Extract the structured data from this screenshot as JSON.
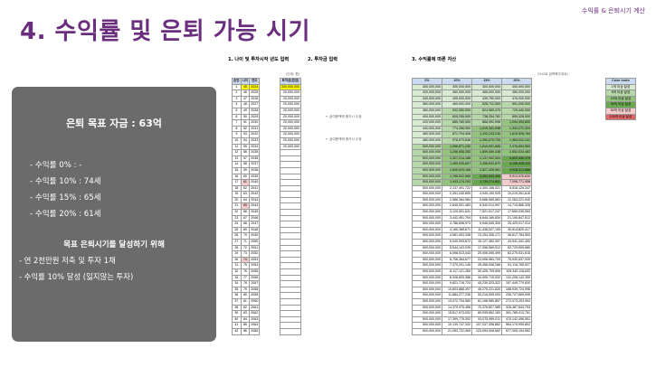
{
  "title": "4. 수익률 및 은퇴 가능 시기",
  "top_label": "수익률 & 은퇴시기 계산",
  "sections": {
    "s1": "1. 나이 및 투자시작 년도 입력",
    "s2": "2. 투자금 입력",
    "s3": "3. 수익률에 따른 자산"
  },
  "panel": {
    "goal": "은퇴 목표 자금 : 63억",
    "items": [
      "- 수익률    0% : -",
      "- 수익률 10% : 74세",
      "- 수익률 15% : 65세",
      "- 수익률 20% : 61세"
    ],
    "heading": "목표 은퇴시기를 달성하기 위해",
    "actions": [
      "- 연 2천만원 저축 및 투자 1채",
      "- 수익률 10% 달성 (잃지않는 투자)"
    ]
  },
  "table1": {
    "headers": [
      "순번",
      "나이",
      "연도"
    ],
    "rows": [
      [
        "1",
        "45",
        "2024"
      ],
      [
        "2",
        "46",
        "2025"
      ],
      [
        "3",
        "47",
        "2026"
      ],
      [
        "4",
        "48",
        "2027"
      ],
      [
        "5",
        "49",
        "2028"
      ],
      [
        "6",
        "50",
        "2029"
      ],
      [
        "7",
        "51",
        "2030"
      ],
      [
        "8",
        "52",
        "2031"
      ],
      [
        "9",
        "53",
        "2032"
      ],
      [
        "10",
        "54",
        "2033"
      ],
      [
        "11",
        "55",
        "2034"
      ],
      [
        "12",
        "56",
        "2035"
      ],
      [
        "13",
        "57",
        "2036"
      ],
      [
        "14",
        "58",
        "2037"
      ],
      [
        "15",
        "59",
        "2038"
      ],
      [
        "16",
        "60",
        "2039"
      ],
      [
        "17",
        "61",
        "2040"
      ],
      [
        "18",
        "62",
        "2041"
      ],
      [
        "19",
        "63",
        "2042"
      ],
      [
        "20",
        "64",
        "2043"
      ],
      [
        "21",
        "65",
        "2044"
      ],
      [
        "22",
        "66",
        "2045"
      ],
      [
        "23",
        "67",
        "2046"
      ],
      [
        "24",
        "68",
        "2047"
      ],
      [
        "25",
        "69",
        "2048"
      ],
      [
        "26",
        "70",
        "2049"
      ],
      [
        "27",
        "71",
        "2050"
      ],
      [
        "28",
        "72",
        "2051"
      ],
      [
        "29",
        "73",
        "2052"
      ],
      [
        "30",
        "74",
        "2053"
      ],
      [
        "31",
        "75",
        "2054"
      ],
      [
        "32",
        "76",
        "2055"
      ],
      [
        "33",
        "77",
        "2056"
      ],
      [
        "34",
        "78",
        "2057"
      ],
      [
        "35",
        "79",
        "2058"
      ],
      [
        "36",
        "80",
        "2059"
      ],
      [
        "37",
        "81",
        "2060"
      ],
      [
        "38",
        "82",
        "2061"
      ],
      [
        "39",
        "83",
        "2062"
      ],
      [
        "40",
        "84",
        "2063"
      ],
      [
        "41",
        "85",
        "2064"
      ],
      [
        "42",
        "86",
        "2065"
      ]
    ]
  },
  "table2": {
    "unit": "(단위: 원)",
    "header": "투자금(원금)",
    "values": [
      "300,000,000",
      "20,000,000",
      "20,000,000",
      "20,000,000",
      "20,000,000",
      "20,000,000",
      "20,000,000",
      "20,000,000",
      "20,000,000",
      "20,000,000",
      "20,000,000"
    ],
    "note": "← 급여증액에 증가시 수정"
  },
  "table3": {
    "unit": "(%으로 입력해주세요)",
    "headers": [
      "0%",
      "10%",
      "15%",
      "20%"
    ],
    "rows": [
      [
        "300,000,000",
        "300,000,000",
        "300,000,000",
        "300,000,000"
      ],
      [
        "320,000,000",
        "350,000,000",
        "365,000,000",
        "380,000,000"
      ],
      [
        "340,000,000",
        "405,000,000",
        "439,750,000",
        "476,000,000"
      ],
      [
        "360,000,000",
        "465,500,000",
        "525,712,500",
        "591,200,000"
      ],
      [
        "380,000,000",
        "532,050,000",
        "624,569,375",
        "729,440,000"
      ],
      [
        "400,000,000",
        "605,255,000",
        "738,254,781",
        "895,328,000"
      ],
      [
        "420,000,000",
        "685,780,500",
        "868,992,998",
        "1,094,393,600"
      ],
      [
        "440,000,000",
        "774,358,550",
        "1,019,341,948",
        "1,333,272,320"
      ],
      [
        "460,000,000",
        "871,794,405",
        "1,192,243,240",
        "1,619,926,784"
      ],
      [
        "480,000,000",
        "978,973,846",
        "1,390,079,726",
        "1,963,912,141"
      ],
      [
        "500,000,000",
        "1,096,871,230",
        "1,616,591,685",
        "2,376,694,569"
      ],
      [
        "500,000,000",
        "1,206,558,353",
        "1,859,080,438",
        "2,852,033,483"
      ],
      [
        "500,000,000",
        "1,327,214,188",
        "2,137,942,504",
        "3,422,440,179"
      ],
      [
        "500,000,000",
        "1,459,935,607",
        "2,458,633,879",
        "4,106,928,215"
      ],
      [
        "500,000,000",
        "1,605,929,168",
        "2,827,428,961",
        "4,928,313,858"
      ],
      [
        "500,000,000",
        "1,766,522,085",
        "3,251,543,305",
        "5,913,976,630"
      ],
      [
        "500,000,000",
        "1,943,174,293",
        "3,739,274,801",
        "7,096,771,956"
      ],
      [
        "500,000,000",
        "2,137,491,722",
        "4,300,166,021",
        "8,516,126,347"
      ],
      [
        "500,000,000",
        "2,351,240,895",
        "4,945,190,925",
        "10,219,351,616"
      ],
      [
        "500,000,000",
        "2,586,364,984",
        "5,686,969,563",
        "12,263,221,940"
      ],
      [
        "500,000,000",
        "2,845,001,483",
        "6,540,014,997",
        "14,715,866,328"
      ],
      [
        "500,000,000",
        "3,129,501,631",
        "7,521,017,247",
        "17,659,039,593"
      ],
      [
        "500,000,000",
        "3,442,451,794",
        "8,649,169,834",
        "21,190,847,512"
      ],
      [
        "500,000,000",
        "3,786,696,973",
        "9,946,545,309",
        "25,429,017,014"
      ],
      [
        "500,000,000",
        "4,165,366,671",
        "11,438,527,105",
        "30,514,820,417"
      ],
      [
        "500,000,000",
        "4,581,903,338",
        "13,154,306,171",
        "36,617,784,500"
      ],
      [
        "500,000,000",
        "5,040,093,672",
        "15,127,452,097",
        "43,941,341,400"
      ],
      [
        "500,000,000",
        "5,544,103,039",
        "17,396,569,912",
        "52,729,609,680"
      ],
      [
        "500,000,000",
        "6,098,513,343",
        "20,006,055,399",
        "63,275,531,616"
      ],
      [
        "500,000,000",
        "6,708,364,677",
        "23,006,963,709",
        "75,930,637,939"
      ],
      [
        "500,000,000",
        "7,379,201,145",
        "26,458,008,266",
        "91,116,765,527"
      ],
      [
        "500,000,000",
        "8,117,121,260",
        "30,426,709,506",
        "109,340,118,632"
      ],
      [
        "500,000,000",
        "8,928,833,386",
        "34,990,715,932",
        "131,208,142,359"
      ],
      [
        "500,000,000",
        "9,821,716,724",
        "40,239,323,322",
        "157,449,770,830"
      ],
      [
        "500,000,000",
        "10,803,888,397",
        "46,275,221,820",
        "188,939,724,996"
      ],
      [
        "500,000,000",
        "11,884,277,236",
        "53,216,505,093",
        "226,727,669,995"
      ],
      [
        "500,000,000",
        "13,072,704,960",
        "61,198,980,857",
        "272,073,203,994"
      ],
      [
        "500,000,000",
        "14,379,975,456",
        "70,378,827,985",
        "326,487,844,793"
      ],
      [
        "500,000,000",
        "15,817,973,002",
        "80,935,652,183",
        "391,785,413,751"
      ],
      [
        "500,000,000",
        "17,399,770,302",
        "93,075,999,011",
        "470,142,496,501"
      ],
      [
        "500,000,000",
        "19,139,747,332",
        "107,037,398,862",
        "564,170,995,802"
      ],
      [
        "500,000,000",
        "21,053,722,065",
        "123,093,008,692",
        "677,005,194,962"
      ]
    ]
  },
  "legend": {
    "title": "Color index",
    "items": [
      "1억 이상 달성",
      "5억 이상 달성",
      "10억 이상 달성",
      "30억 이상 달성",
      "50억 이상 달성",
      "100억 이상 달성"
    ],
    "colors": [
      "#d9ead3",
      "#b6d7a8",
      "#93c47d",
      "#6aa84f",
      "#f4cccc",
      "#e06666"
    ]
  }
}
